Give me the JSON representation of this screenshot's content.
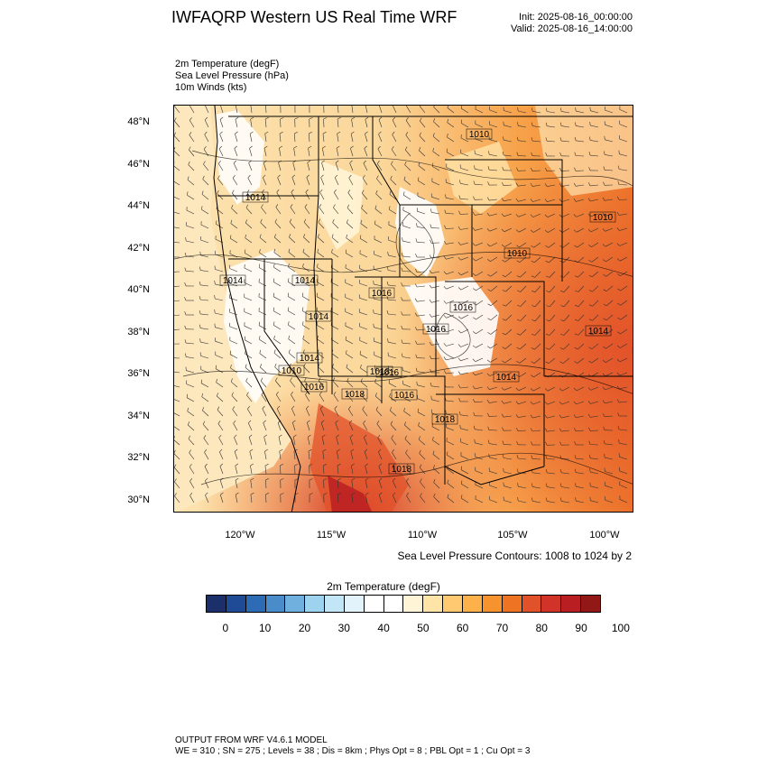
{
  "header": {
    "title": "IWFAQRP Western US Real Time WRF",
    "init": "Init: 2025-08-16_00:00:00",
    "valid": "Valid: 2025-08-16_14:00:00"
  },
  "fields": [
    "2m Temperature   (degF)",
    "Sea Level Pressure   (hPa)",
    "10m Winds   (kts)"
  ],
  "map": {
    "lat_labels": [
      "48°N",
      "46°N",
      "44°N",
      "42°N",
      "40°N",
      "38°N",
      "36°N",
      "34°N",
      "32°N",
      "30°N"
    ],
    "lon_labels": [
      "120°W",
      "115°W",
      "110°W",
      "105°W",
      "100°W"
    ],
    "pressure_labels": [
      "1010",
      "1014",
      "1010",
      "1014",
      "1016",
      "1010",
      "1014",
      "1014",
      "1016",
      "1014",
      "1014",
      "1010",
      "1016",
      "1016",
      "1018",
      "1014",
      "1016",
      "1018",
      "1018",
      "1018",
      "1016"
    ],
    "contour_note": "Sea Level Pressure Contours: 1008 to 1024 by 2"
  },
  "colorbar": {
    "title": "2m Temperature  (degF)",
    "ticks": [
      "0",
      "10",
      "20",
      "30",
      "40",
      "50",
      "60",
      "70",
      "80",
      "90",
      "100"
    ],
    "colors": [
      "#1b2f6b",
      "#1f4b96",
      "#2e6bb5",
      "#4a8cca",
      "#6fb0de",
      "#9ed3f0",
      "#c3e6f7",
      "#e2f3fb",
      "#ffffff",
      "#ffffff",
      "#fff4d6",
      "#ffe4a8",
      "#ffc972",
      "#fdb14a",
      "#f7932f",
      "#ee7424",
      "#e2522a",
      "#d23328",
      "#b81e22",
      "#921717"
    ]
  },
  "footer": {
    "line1": "OUTPUT FROM WRF V4.6.1 MODEL",
    "line2": "WE = 310 ; SN = 275 ; Levels = 38 ; Dis = 8km ; Phys Opt = 8 ; PBL Opt = 1 ; Cu Opt = 3"
  }
}
